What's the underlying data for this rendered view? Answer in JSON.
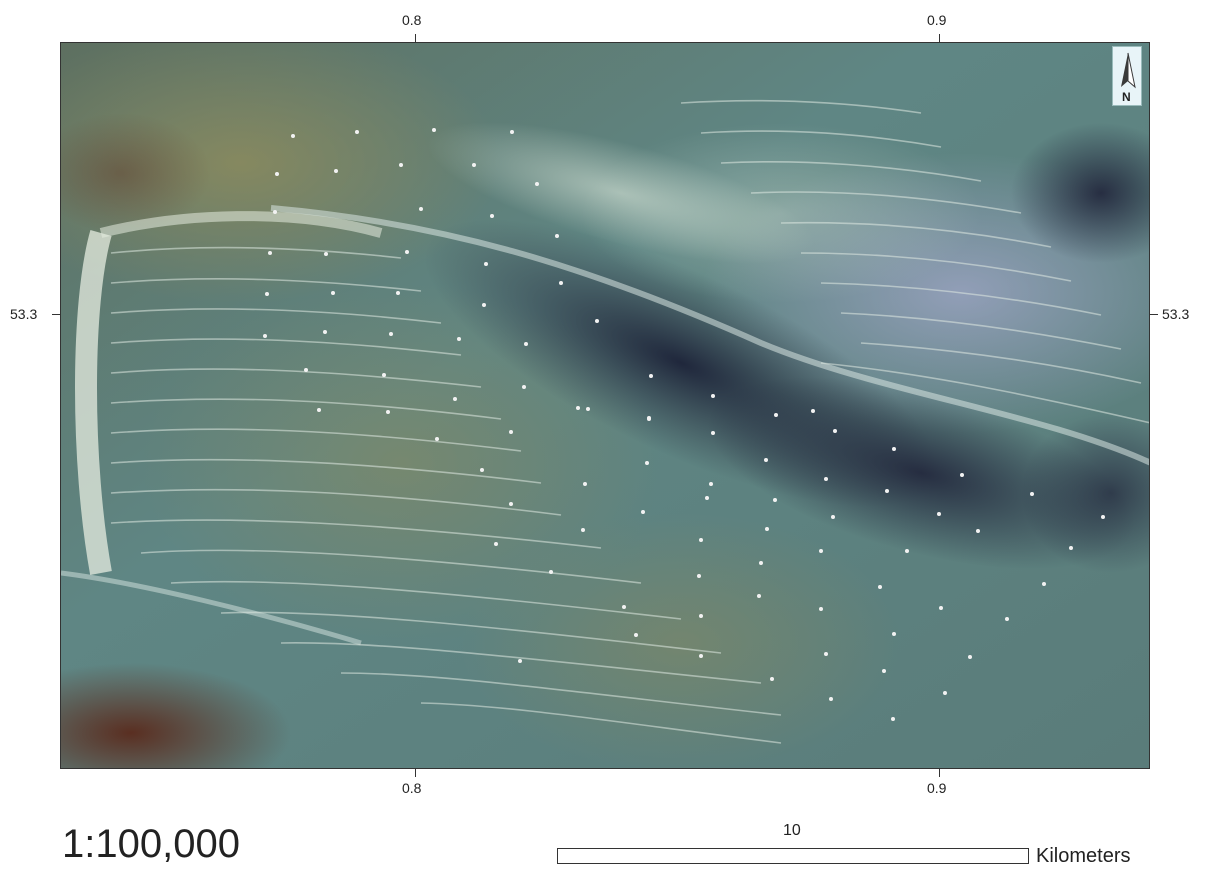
{
  "map": {
    "lon_labels": [
      "0.8",
      "0.9"
    ],
    "lat_labels": [
      "53.3"
    ],
    "scale_text": "1:100,000",
    "scalebar_value": "10",
    "scalebar_unit": "Kilometers",
    "north_label": "N",
    "colors": {
      "sea_teal": "#52787a",
      "deep_water": "#2a2f45",
      "sand_bright": "#dfe7df",
      "olive_shoal": "#7c8462",
      "rust_edge": "#6a3a22",
      "lavender": "#9aa0c4"
    }
  }
}
